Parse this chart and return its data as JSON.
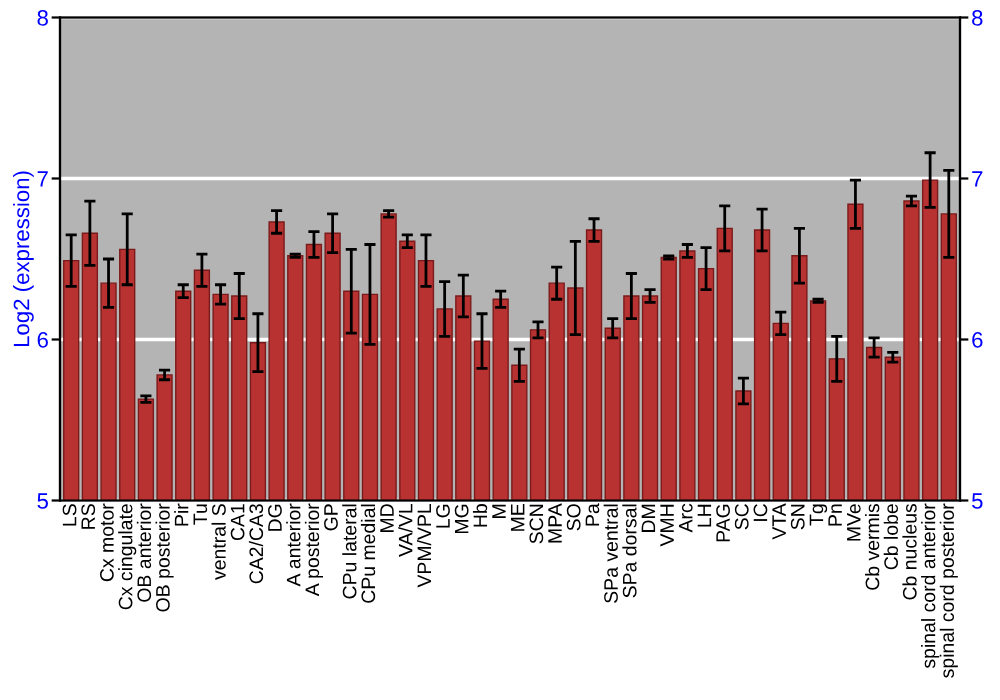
{
  "chart_data": {
    "type": "bar",
    "ylabel": "Log2 (expression)",
    "categories": [
      "LS",
      "RS",
      "Cx motor",
      "Cx cingulate",
      "OB anterior",
      "OB posterior",
      "Pir",
      "Tu",
      "ventral S",
      "CA1",
      "CA2/CA3",
      "DG",
      "A anterior",
      "A posterior",
      "GP",
      "CPu lateral",
      "CPu medial",
      "MD",
      "VA/VL",
      "VPM/VPL",
      "LG",
      "MG",
      "Hb",
      "M",
      "ME",
      "SCN",
      "MPA",
      "SO",
      "Pa",
      "SPa ventral",
      "SPa dorsal",
      "DM",
      "VMH",
      "Arc",
      "LH",
      "PAG",
      "SC",
      "IC",
      "VTA",
      "SN",
      "Tg",
      "Pn",
      "MVe",
      "Cb vermis",
      "Cb lobe",
      "Cb nucleus",
      "spinal cord anterior",
      "spinal cord posterior"
    ],
    "values": [
      6.49,
      6.66,
      6.35,
      6.56,
      5.63,
      5.78,
      6.3,
      6.43,
      6.28,
      6.27,
      5.98,
      6.73,
      6.52,
      6.59,
      6.66,
      6.3,
      6.28,
      6.78,
      6.61,
      6.49,
      6.19,
      6.27,
      5.99,
      6.25,
      5.84,
      6.06,
      6.35,
      6.32,
      6.68,
      6.07,
      6.27,
      6.27,
      6.51,
      6.55,
      6.44,
      6.69,
      5.68,
      6.68,
      6.1,
      6.52,
      6.24,
      5.88,
      6.84,
      5.95,
      5.89,
      6.86,
      6.99,
      6.78
    ],
    "errors": [
      0.16,
      0.2,
      0.15,
      0.22,
      0.02,
      0.03,
      0.04,
      0.1,
      0.06,
      0.14,
      0.18,
      0.07,
      0.01,
      0.08,
      0.12,
      0.26,
      0.31,
      0.02,
      0.04,
      0.16,
      0.17,
      0.13,
      0.17,
      0.05,
      0.1,
      0.05,
      0.1,
      0.29,
      0.07,
      0.06,
      0.14,
      0.04,
      0.01,
      0.04,
      0.13,
      0.14,
      0.08,
      0.13,
      0.07,
      0.17,
      0.01,
      0.14,
      0.15,
      0.06,
      0.03,
      0.03,
      0.17,
      0.27
    ],
    "color": "#b83232",
    "ylim": [
      5,
      8
    ],
    "yticks": [
      5,
      6,
      7,
      8
    ],
    "y2lim": [
      5,
      8
    ],
    "y2ticks": [
      5,
      6,
      7,
      8
    ],
    "grid": "y"
  }
}
